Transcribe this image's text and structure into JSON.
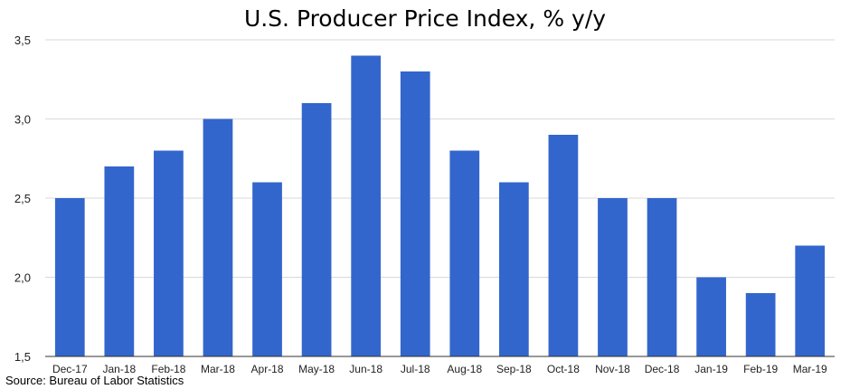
{
  "source": "Source: Bureau of Labor Statistics",
  "colors": {
    "bar": "#3366cc",
    "grid": "#d9d9d9",
    "axis": "#333333"
  },
  "chart_data": {
    "type": "bar",
    "title": "U.S. Producer Price Index, % y/y",
    "xlabel": "",
    "ylabel": "",
    "categories": [
      "Dec-17",
      "Jan-18",
      "Feb-18",
      "Mar-18",
      "Apr-18",
      "May-18",
      "Jun-18",
      "Jul-18",
      "Aug-18",
      "Sep-18",
      "Oct-18",
      "Nov-18",
      "Dec-18",
      "Jan-19",
      "Feb-19",
      "Mar-19"
    ],
    "values": [
      2.5,
      2.7,
      2.8,
      3.0,
      2.6,
      3.1,
      3.4,
      3.3,
      2.8,
      2.6,
      2.9,
      2.5,
      2.5,
      2.0,
      1.9,
      2.2
    ],
    "ylim": [
      1.5,
      3.5
    ],
    "yticks": [
      1.5,
      2.0,
      2.5,
      3.0,
      3.5
    ],
    "ytick_labels": [
      "1,5",
      "2,0",
      "2,5",
      "3,0",
      "3,5"
    ],
    "grid": true,
    "legend": "none"
  }
}
